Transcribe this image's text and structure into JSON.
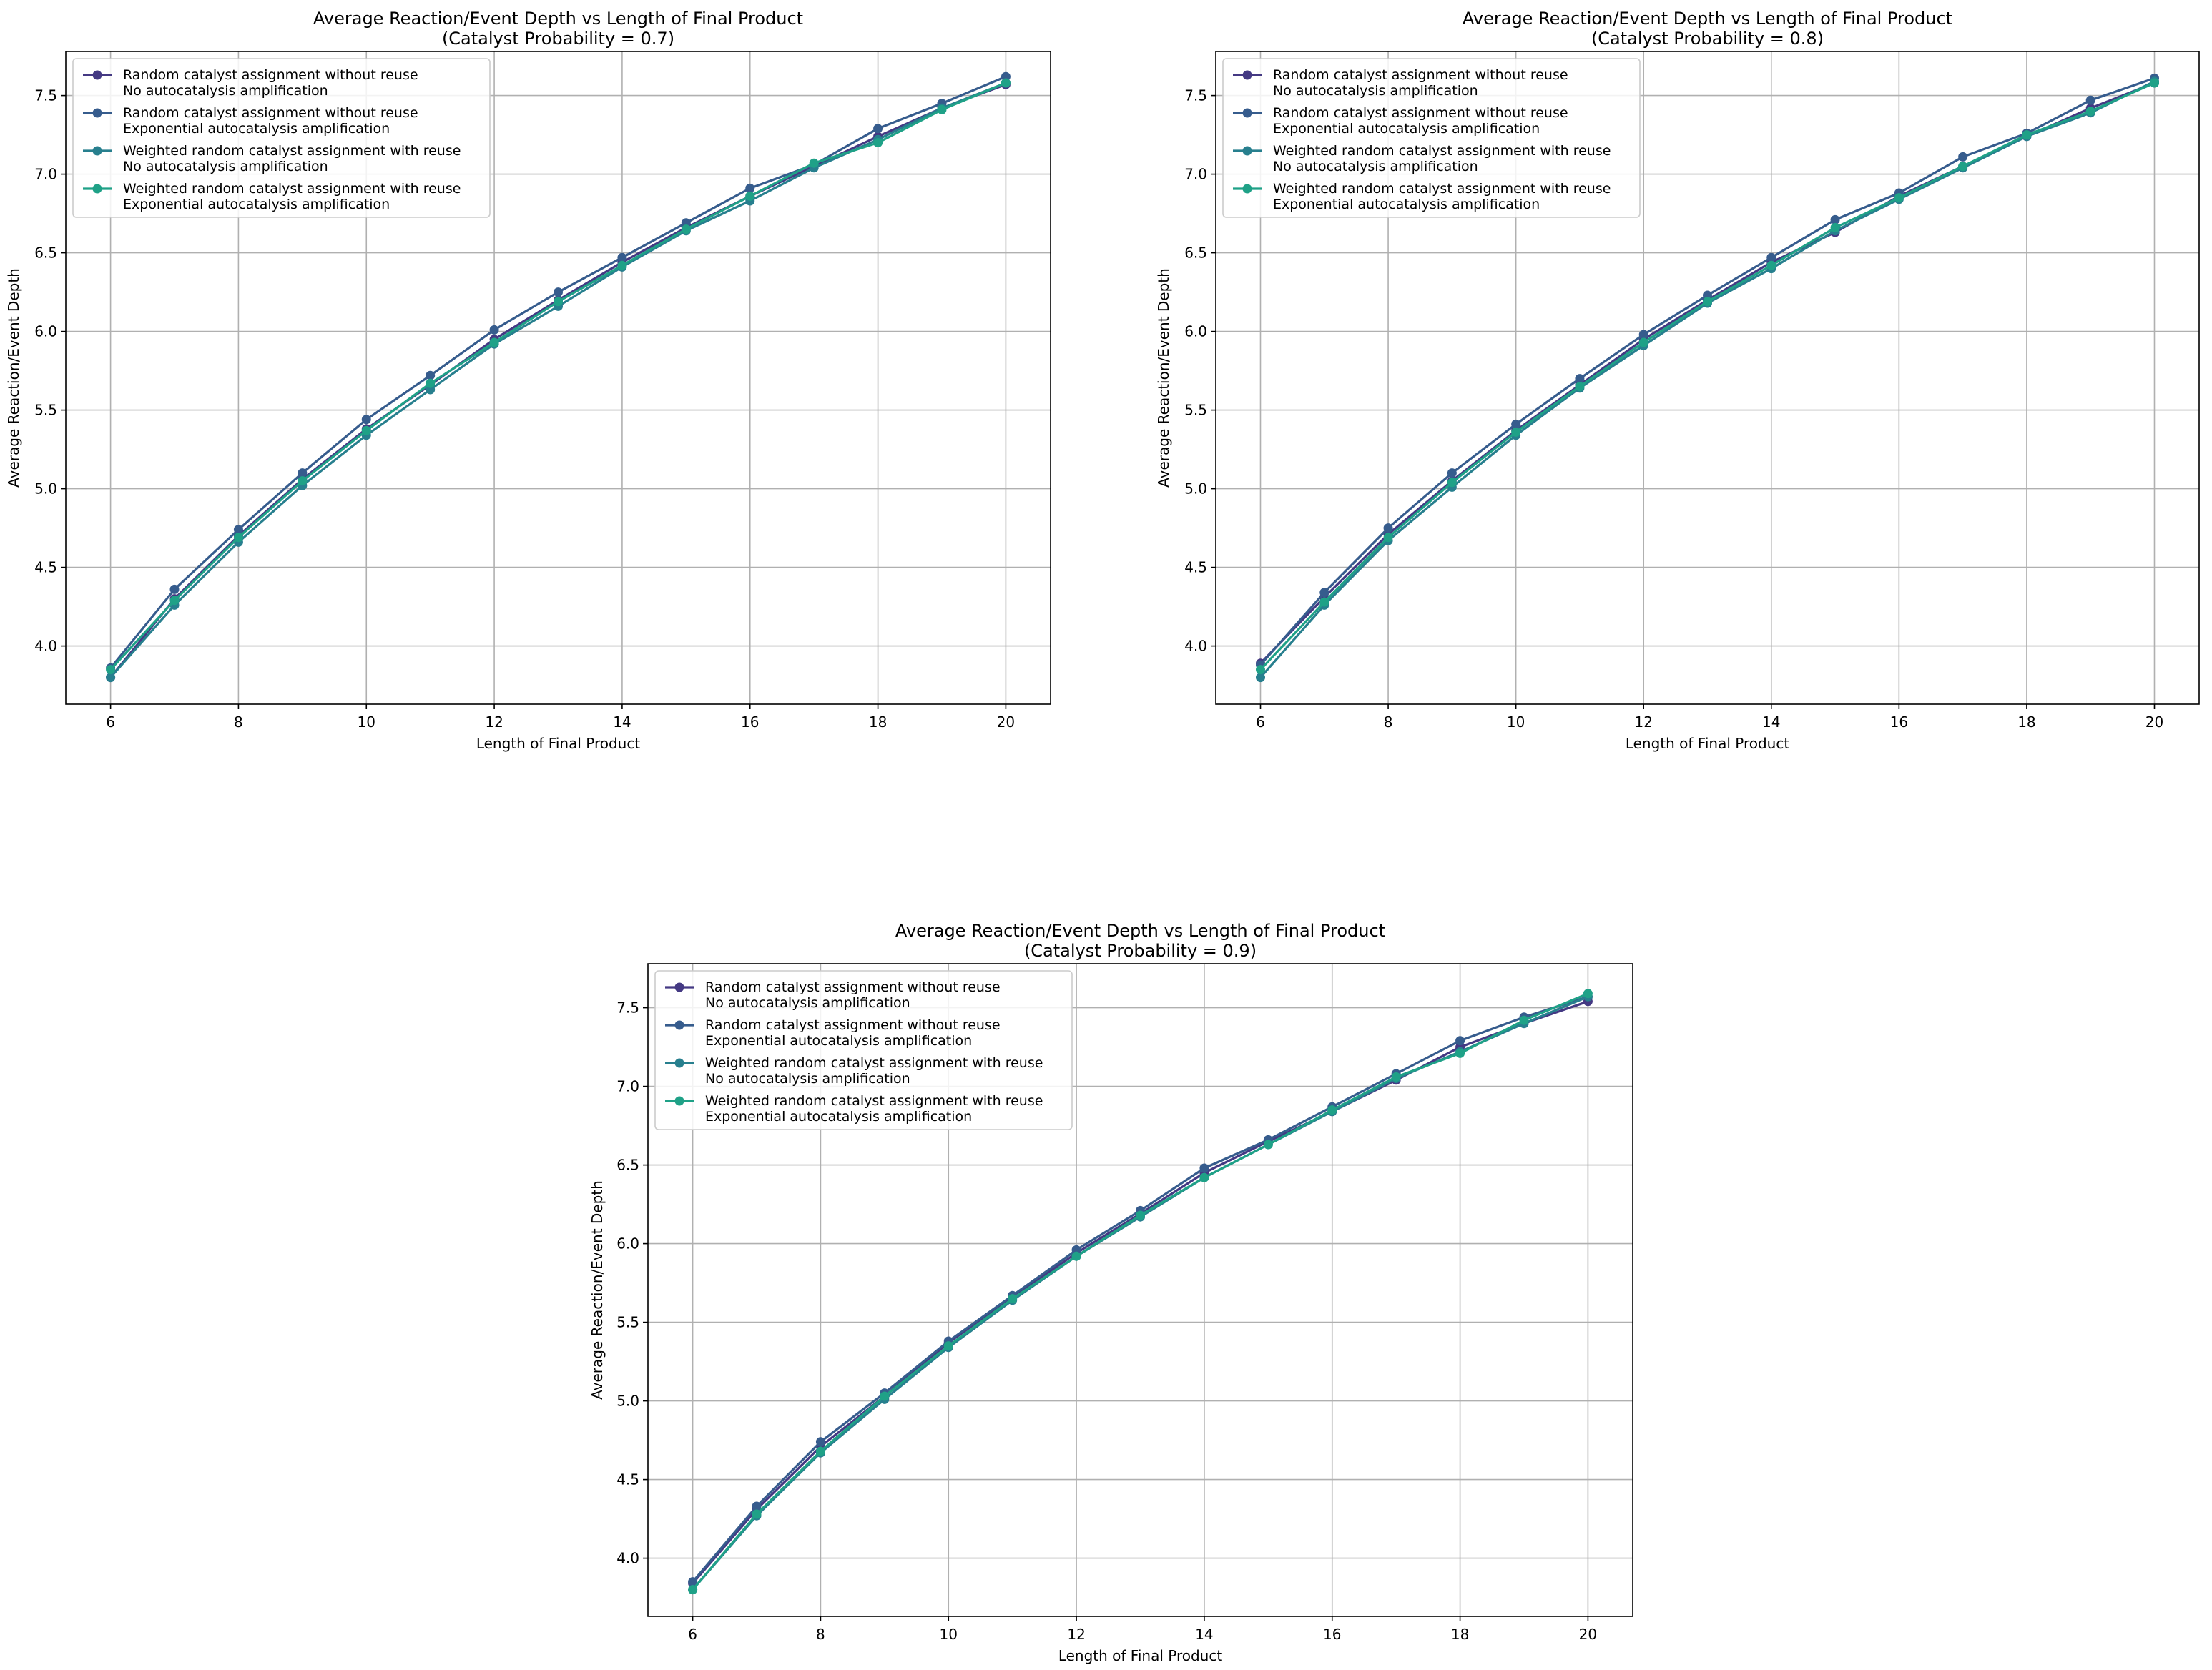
{
  "figure": {
    "series_colors": [
      "#443983",
      "#365c8d",
      "#277f8e",
      "#1fa187"
    ]
  },
  "chart_data": [
    {
      "type": "line",
      "title": "Average Reaction/Event Depth vs Length of Final Product",
      "subtitle": "(Catalyst Probability = 0.7)",
      "xlabel": "Length of Final Product",
      "ylabel": "Average Reaction/Event Depth",
      "xlim": [
        5.3,
        20.7
      ],
      "ylim": [
        3.63,
        7.78
      ],
      "xticks": [
        6,
        8,
        10,
        12,
        14,
        16,
        18,
        20
      ],
      "xtick_labels": [
        "6",
        "8",
        "10",
        "12",
        "14",
        "16",
        "18",
        "20"
      ],
      "yticks": [
        4.0,
        4.5,
        5.0,
        5.5,
        6.0,
        6.5,
        7.0,
        7.5
      ],
      "ytick_labels": [
        "4.0",
        "4.5",
        "5.0",
        "5.5",
        "6.0",
        "6.5",
        "7.0",
        "7.5"
      ],
      "grid": true,
      "legend_position": "top-left",
      "x": [
        6,
        7,
        8,
        9,
        10,
        11,
        12,
        13,
        14,
        15,
        16,
        17,
        18,
        19,
        20
      ],
      "series": [
        {
          "name": "Random catalyst assignment without reuse\nNo autocatalysis amplification",
          "values": [
            3.8,
            4.3,
            4.7,
            5.06,
            5.38,
            5.66,
            5.95,
            6.2,
            6.44,
            6.66,
            6.86,
            7.05,
            7.24,
            7.42,
            7.57
          ]
        },
        {
          "name": "Random catalyst assignment without reuse\nExponential autocatalysis amplification",
          "values": [
            3.86,
            4.36,
            4.74,
            5.1,
            5.44,
            5.72,
            6.01,
            6.25,
            6.47,
            6.69,
            6.91,
            7.06,
            7.29,
            7.45,
            7.62
          ]
        },
        {
          "name": "Weighted random catalyst assignment with reuse\nNo autocatalysis amplification",
          "values": [
            3.8,
            4.26,
            4.66,
            5.02,
            5.34,
            5.63,
            5.92,
            6.16,
            6.41,
            6.64,
            6.83,
            7.04,
            7.22,
            7.42,
            7.58
          ]
        },
        {
          "name": "Weighted random catalyst assignment with reuse\nExponential autocatalysis amplification",
          "values": [
            3.85,
            4.29,
            4.69,
            5.05,
            5.37,
            5.67,
            5.93,
            6.19,
            6.42,
            6.65,
            6.86,
            7.07,
            7.2,
            7.41,
            7.58
          ]
        }
      ]
    },
    {
      "type": "line",
      "title": "Average Reaction/Event Depth vs Length of Final Product",
      "subtitle": "(Catalyst Probability = 0.8)",
      "xlabel": "Length of Final Product",
      "ylabel": "Average Reaction/Event Depth",
      "xlim": [
        5.3,
        20.7
      ],
      "ylim": [
        3.63,
        7.78
      ],
      "xticks": [
        6,
        8,
        10,
        12,
        14,
        16,
        18,
        20
      ],
      "xtick_labels": [
        "6",
        "8",
        "10",
        "12",
        "14",
        "16",
        "18",
        "20"
      ],
      "yticks": [
        4.0,
        4.5,
        5.0,
        5.5,
        6.0,
        6.5,
        7.0,
        7.5
      ],
      "ytick_labels": [
        "4.0",
        "4.5",
        "5.0",
        "5.5",
        "6.0",
        "6.5",
        "7.0",
        "7.5"
      ],
      "grid": true,
      "legend_position": "top-left",
      "x": [
        6,
        7,
        8,
        9,
        10,
        11,
        12,
        13,
        14,
        15,
        16,
        17,
        18,
        19,
        20
      ],
      "series": [
        {
          "name": "Random catalyst assignment without reuse\nNo autocatalysis amplification",
          "values": [
            3.89,
            4.31,
            4.71,
            5.05,
            5.37,
            5.66,
            5.95,
            6.2,
            6.44,
            6.63,
            6.86,
            7.05,
            7.24,
            7.42,
            7.58
          ]
        },
        {
          "name": "Random catalyst assignment without reuse\nExponential autocatalysis amplification",
          "values": [
            3.88,
            4.34,
            4.75,
            5.1,
            5.41,
            5.7,
            5.98,
            6.23,
            6.47,
            6.71,
            6.88,
            7.11,
            7.26,
            7.47,
            7.61
          ]
        },
        {
          "name": "Weighted random catalyst assignment with reuse\nNo autocatalysis amplification",
          "values": [
            3.8,
            4.26,
            4.67,
            5.01,
            5.34,
            5.64,
            5.91,
            6.18,
            6.4,
            6.64,
            6.84,
            7.04,
            7.24,
            7.39,
            7.59
          ]
        },
        {
          "name": "Weighted random catalyst assignment with reuse\nExponential autocatalysis amplification",
          "values": [
            3.85,
            4.28,
            4.69,
            5.04,
            5.36,
            5.65,
            5.93,
            6.19,
            6.42,
            6.66,
            6.85,
            7.05,
            7.25,
            7.4,
            7.58
          ]
        }
      ]
    },
    {
      "type": "line",
      "title": "Average Reaction/Event Depth vs Length of Final Product",
      "subtitle": "(Catalyst Probability = 0.9)",
      "xlabel": "Length of Final Product",
      "ylabel": "Average Reaction/Event Depth",
      "xlim": [
        5.3,
        20.7
      ],
      "ylim": [
        3.63,
        7.78
      ],
      "xticks": [
        6,
        8,
        10,
        12,
        14,
        16,
        18,
        20
      ],
      "xtick_labels": [
        "6",
        "8",
        "10",
        "12",
        "14",
        "16",
        "18",
        "20"
      ],
      "yticks": [
        4.0,
        4.5,
        5.0,
        5.5,
        6.0,
        6.5,
        7.0,
        7.5
      ],
      "ytick_labels": [
        "4.0",
        "4.5",
        "5.0",
        "5.5",
        "6.0",
        "6.5",
        "7.0",
        "7.5"
      ],
      "grid": true,
      "legend_position": "top-left",
      "x": [
        6,
        7,
        8,
        9,
        10,
        11,
        12,
        13,
        14,
        15,
        16,
        17,
        18,
        19,
        20
      ],
      "series": [
        {
          "name": "Random catalyst assignment without reuse\nNo autocatalysis amplification",
          "values": [
            3.84,
            4.31,
            4.71,
            5.03,
            5.37,
            5.66,
            5.94,
            6.19,
            6.45,
            6.65,
            6.84,
            7.04,
            7.25,
            7.4,
            7.54
          ]
        },
        {
          "name": "Random catalyst assignment without reuse\nExponential autocatalysis amplification",
          "values": [
            3.85,
            4.33,
            4.74,
            5.05,
            5.38,
            5.67,
            5.96,
            6.21,
            6.48,
            6.66,
            6.87,
            7.08,
            7.29,
            7.44,
            7.57
          ]
        },
        {
          "name": "Weighted random catalyst assignment with reuse\nNo autocatalysis amplification",
          "values": [
            3.8,
            4.27,
            4.67,
            5.01,
            5.34,
            5.64,
            5.92,
            6.17,
            6.42,
            6.63,
            6.84,
            7.05,
            7.22,
            7.4,
            7.57
          ]
        },
        {
          "name": "Weighted random catalyst assignment with reuse\nExponential autocatalysis amplification",
          "values": [
            3.8,
            4.28,
            4.68,
            5.03,
            5.35,
            5.65,
            5.92,
            6.18,
            6.42,
            6.63,
            6.85,
            7.06,
            7.21,
            7.42,
            7.59
          ]
        }
      ]
    }
  ]
}
